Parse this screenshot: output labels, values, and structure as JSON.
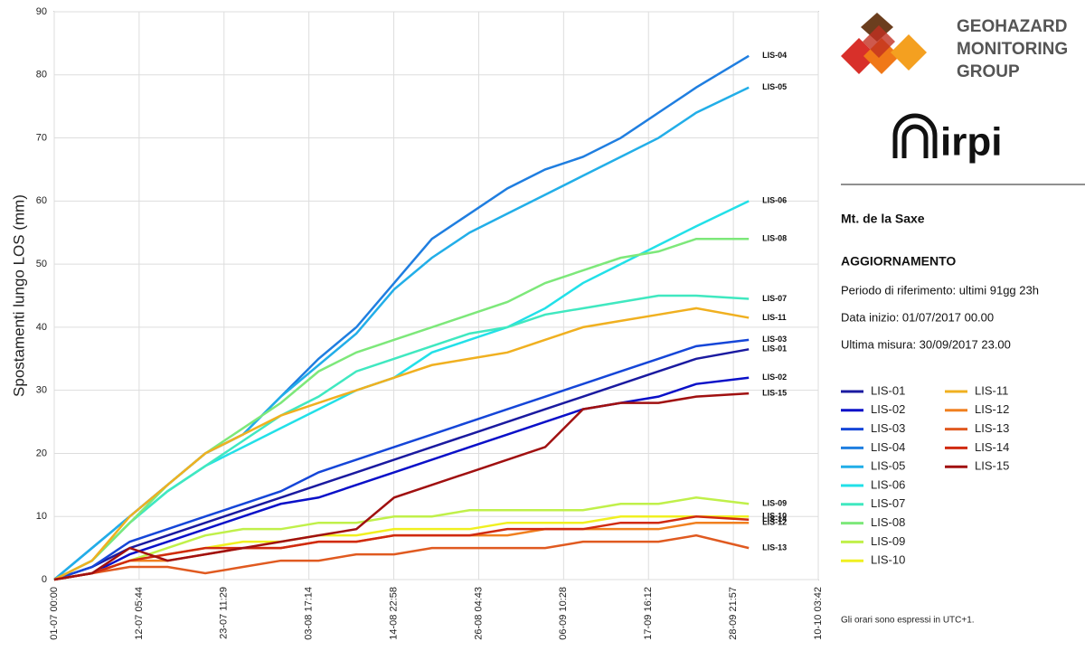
{
  "chart_data": {
    "type": "line",
    "y_label": "Spostamenti lungo LOS (mm)",
    "x": [
      "01-07 00:00",
      "06-07 00:00",
      "11-07 00:00",
      "16-07 00:00",
      "21-07 00:00",
      "26-07 00:00",
      "31-07 00:00",
      "05-08 00:00",
      "10-08 00:00",
      "15-08 00:00",
      "20-08 00:00",
      "25-08 00:00",
      "30-08 00:00",
      "04-09 00:00",
      "09-09 00:00",
      "14-09 00:00",
      "19-09 00:00",
      "24-09 00:00",
      "30-09 23:00"
    ],
    "xlim": [
      "01-07 00:00",
      "10-10 03:42"
    ],
    "xticks": [
      "01-07 00:00",
      "12-07 05:44",
      "23-07 11:29",
      "03-08 17:14",
      "14-08 22:58",
      "26-08 04:43",
      "06-09 10:28",
      "17-09 16:12",
      "28-09 21:57",
      "10-10 03:42"
    ],
    "ylim": [
      0,
      90
    ],
    "yticks": [
      0,
      10,
      20,
      30,
      40,
      50,
      60,
      70,
      80,
      90
    ],
    "grid": true,
    "series": [
      {
        "name": "LIS-01",
        "color": "#1a1aa0",
        "values": [
          0,
          2,
          5,
          7,
          9,
          11,
          13,
          15,
          17,
          19,
          21,
          23,
          25,
          27,
          29,
          31,
          33,
          35,
          36.5
        ]
      },
      {
        "name": "LIS-02",
        "color": "#0a10c8",
        "values": [
          0,
          1,
          4,
          6,
          8,
          10,
          12,
          13,
          15,
          17,
          19,
          21,
          23,
          25,
          27,
          28,
          29,
          31,
          32
        ]
      },
      {
        "name": "LIS-03",
        "color": "#1546d8",
        "values": [
          0,
          2,
          6,
          8,
          10,
          12,
          14,
          17,
          19,
          21,
          23,
          25,
          27,
          29,
          31,
          33,
          35,
          37,
          38
        ]
      },
      {
        "name": "LIS-04",
        "color": "#1f7ee0",
        "values": [
          0,
          5,
          10,
          15,
          20,
          23,
          29,
          35,
          40,
          47,
          54,
          58,
          62,
          65,
          67,
          70,
          74,
          78,
          83
        ]
      },
      {
        "name": "LIS-05",
        "color": "#22aee8",
        "values": [
          0,
          5,
          10,
          15,
          20,
          23,
          29,
          34,
          39,
          46,
          51,
          55,
          58,
          61,
          64,
          67,
          70,
          74,
          78
        ]
      },
      {
        "name": "LIS-06",
        "color": "#22e0e8",
        "values": [
          0,
          3,
          9,
          14,
          18,
          21,
          24,
          27,
          30,
          32,
          36,
          38,
          40,
          43,
          47,
          50,
          53,
          56,
          60
        ]
      },
      {
        "name": "LIS-07",
        "color": "#40e8c0",
        "values": [
          0,
          3,
          9,
          14,
          18,
          22,
          26,
          29,
          33,
          35,
          37,
          39,
          40,
          42,
          43,
          44,
          45,
          45,
          44.5
        ]
      },
      {
        "name": "LIS-08",
        "color": "#7de87a",
        "values": [
          0,
          3,
          9,
          15,
          20,
          24,
          28,
          33,
          36,
          38,
          40,
          42,
          44,
          47,
          49,
          51,
          52,
          54,
          54
        ]
      },
      {
        "name": "LIS-09",
        "color": "#c0f04a",
        "values": [
          0,
          1,
          3,
          5,
          7,
          8,
          8,
          9,
          9,
          10,
          10,
          11,
          11,
          11,
          11,
          12,
          12,
          13,
          12
        ]
      },
      {
        "name": "LIS-10",
        "color": "#f0f020",
        "values": [
          0,
          1,
          3,
          4,
          5,
          6,
          6,
          7,
          7,
          8,
          8,
          8,
          9,
          9,
          9,
          10,
          10,
          10,
          10
        ]
      },
      {
        "name": "LIS-11",
        "color": "#f0b020",
        "values": [
          0,
          3,
          10,
          15,
          20,
          23,
          26,
          28,
          30,
          32,
          34,
          35,
          36,
          38,
          40,
          41,
          42,
          43,
          41.5
        ]
      },
      {
        "name": "LIS-12",
        "color": "#f08020",
        "values": [
          0,
          1,
          3,
          3,
          4,
          5,
          5,
          6,
          6,
          7,
          7,
          7,
          7,
          8,
          8,
          8,
          8,
          9,
          9
        ]
      },
      {
        "name": "LIS-13",
        "color": "#e05a20",
        "values": [
          0,
          1,
          2,
          2,
          1,
          2,
          3,
          3,
          4,
          4,
          5,
          5,
          5,
          5,
          6,
          6,
          6,
          7,
          5
        ]
      },
      {
        "name": "LIS-14",
        "color": "#d02a10",
        "values": [
          0,
          1,
          3,
          4,
          5,
          5,
          5,
          6,
          6,
          7,
          7,
          7,
          8,
          8,
          8,
          9,
          9,
          10,
          9.5
        ]
      },
      {
        "name": "LIS-15",
        "color": "#a01010",
        "values": [
          0,
          1,
          5,
          3,
          4,
          5,
          6,
          7,
          8,
          13,
          15,
          17,
          19,
          21,
          27,
          28,
          28,
          29,
          29.5
        ]
      }
    ]
  },
  "panel": {
    "logo_lines": [
      "GEOHAZARD",
      "MONITORING",
      "GROUP"
    ],
    "irpi": "irpi",
    "site": "Mt. de la Saxe",
    "heading": "AGGIORNAMENTO",
    "lines": [
      "Periodo di riferimento: ultimi 91gg 23h",
      "Data inizio: 01/07/2017 00.00",
      "Ultima misura:  30/09/2017 23.00"
    ],
    "note": "Gli orari sono espressi in UTC+1."
  }
}
